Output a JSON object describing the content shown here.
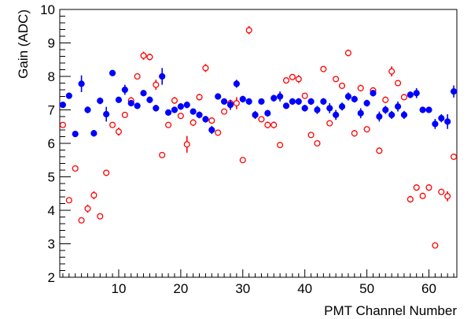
{
  "chart_data": {
    "type": "scatter",
    "title": "",
    "xlabel": "PMT Channel Number",
    "ylabel": "Gain (ADC)",
    "xlim": [
      0.5,
      64.5
    ],
    "ylim": [
      2,
      10
    ],
    "xticks": [
      10,
      20,
      30,
      40,
      50,
      60
    ],
    "yticks": [
      2,
      3,
      4,
      5,
      6,
      7,
      8,
      9,
      10
    ],
    "grid": false,
    "series": [
      {
        "marker": "filled-circle",
        "color": "#0000ff",
        "x": [
          1,
          2,
          3,
          4,
          5,
          6,
          7,
          8,
          9,
          10,
          11,
          12,
          13,
          14,
          15,
          16,
          17,
          18,
          19,
          20,
          21,
          22,
          23,
          24,
          25,
          26,
          27,
          28,
          29,
          30,
          31,
          32,
          33,
          34,
          35,
          36,
          37,
          38,
          39,
          40,
          41,
          42,
          43,
          44,
          45,
          46,
          47,
          48,
          49,
          50,
          51,
          52,
          53,
          54,
          55,
          56,
          57,
          58,
          59,
          60,
          61,
          62,
          63,
          64
        ],
        "values": [
          7.15,
          7.42,
          6.28,
          7.78,
          7.0,
          6.3,
          7.27,
          6.87,
          8.1,
          7.3,
          7.6,
          7.2,
          7.12,
          7.5,
          7.3,
          7.05,
          8.0,
          6.92,
          7.0,
          7.1,
          7.15,
          6.95,
          6.85,
          6.72,
          6.4,
          7.4,
          7.25,
          7.15,
          7.78,
          7.32,
          7.25,
          6.85,
          7.25,
          6.9,
          7.35,
          7.4,
          7.12,
          7.25,
          7.25,
          7.05,
          7.25,
          7.0,
          7.25,
          7.05,
          6.85,
          7.1,
          7.4,
          7.32,
          6.9,
          7.2,
          7.5,
          6.8,
          7.0,
          6.85,
          7.1,
          6.85,
          7.45,
          7.5,
          7.0,
          7.0,
          6.58,
          6.75,
          6.65,
          7.55
        ],
        "errors": [
          0.05,
          0.05,
          0.05,
          0.25,
          0.1,
          0.1,
          0.1,
          0.22,
          0.05,
          0.05,
          0.15,
          0.05,
          0.05,
          0.08,
          0.1,
          0.1,
          0.25,
          0.05,
          0.05,
          0.1,
          0.1,
          0.05,
          0.1,
          0.1,
          0.12,
          0.05,
          0.05,
          0.15,
          0.12,
          0.1,
          0.1,
          0.12,
          0.05,
          0.1,
          0.1,
          0.15,
          0.08,
          0.1,
          0.1,
          0.1,
          0.1,
          0.12,
          0.1,
          0.15,
          0.15,
          0.12,
          0.12,
          0.1,
          0.15,
          0.1,
          0.1,
          0.15,
          0.12,
          0.12,
          0.15,
          0.12,
          0.1,
          0.15,
          0.05,
          0.05,
          0.15,
          0.12,
          0.22,
          0.18
        ]
      },
      {
        "marker": "open-circle",
        "color": "#ff0000",
        "x": [
          1,
          2,
          3,
          4,
          5,
          6,
          7,
          8,
          9,
          10,
          11,
          12,
          13,
          14,
          15,
          16,
          17,
          18,
          19,
          20,
          21,
          22,
          23,
          24,
          25,
          26,
          27,
          28,
          29,
          30,
          31,
          32,
          33,
          34,
          35,
          36,
          37,
          38,
          39,
          40,
          41,
          42,
          43,
          44,
          45,
          46,
          47,
          48,
          49,
          50,
          51,
          52,
          53,
          54,
          55,
          56,
          57,
          58,
          59,
          60,
          61,
          62,
          63,
          64
        ],
        "values": [
          6.55,
          4.3,
          5.25,
          3.7,
          4.05,
          4.45,
          3.82,
          5.12,
          6.55,
          6.35,
          6.85,
          7.28,
          8.0,
          8.62,
          8.58,
          7.75,
          5.65,
          6.55,
          7.28,
          6.82,
          5.97,
          6.62,
          7.38,
          8.25,
          6.68,
          6.32,
          6.95,
          7.2,
          7.2,
          5.5,
          9.38,
          6.85,
          6.72,
          6.55,
          6.55,
          5.95,
          7.88,
          7.98,
          7.92,
          7.42,
          6.25,
          6.0,
          8.22,
          6.6,
          7.92,
          7.72,
          8.7,
          6.3,
          7.65,
          6.42,
          7.58,
          5.78,
          7.3,
          8.15,
          7.8,
          7.38,
          4.33,
          4.68,
          4.43,
          4.68,
          2.95,
          4.55,
          4.42,
          5.6
        ],
        "errors": [
          0.05,
          0.05,
          0.05,
          0.05,
          0.12,
          0.12,
          0.05,
          0.05,
          0.05,
          0.12,
          0.05,
          0.1,
          0.05,
          0.12,
          0.1,
          0.15,
          0.05,
          0.05,
          0.1,
          0.05,
          0.25,
          0.1,
          0.1,
          0.12,
          0.05,
          0.05,
          0.05,
          0.1,
          0.18,
          0.05,
          0.12,
          0.1,
          0.05,
          0.1,
          0.1,
          0.05,
          0.05,
          0.05,
          0.12,
          0.05,
          0.05,
          0.05,
          0.05,
          0.05,
          0.08,
          0.08,
          0.1,
          0.1,
          0.1,
          0.05,
          0.05,
          0.05,
          0.1,
          0.15,
          0.05,
          0.05,
          0.1,
          0.08,
          0.05,
          0.1,
          0.05,
          0.05,
          0.15,
          0.05
        ]
      }
    ]
  }
}
